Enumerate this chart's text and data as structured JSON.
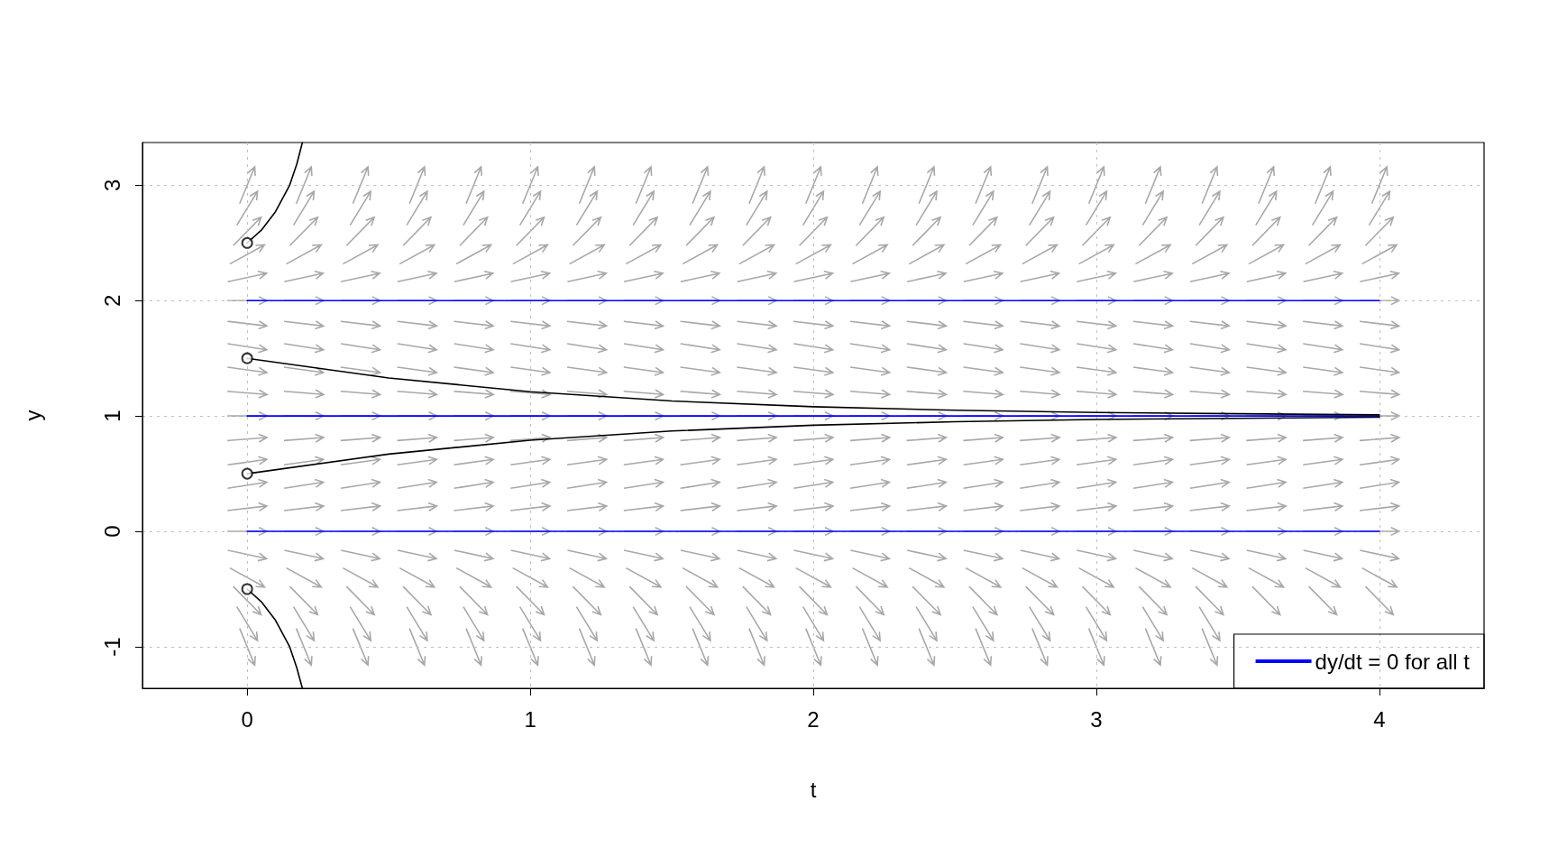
{
  "chart_data": {
    "type": "line",
    "xlabel": "t",
    "ylabel": "y",
    "xlim": [
      -0.37,
      4.37
    ],
    "ylim": [
      -1.36,
      3.37
    ],
    "xticks": [
      0,
      1,
      2,
      3,
      4
    ],
    "yticks": [
      -1,
      0,
      1,
      2,
      3
    ],
    "grid": true,
    "legend": "bottom right",
    "marker": "none",
    "line_style": "solid",
    "series": [
      {
        "name": "dy/dt = 0 for all t",
        "color": "#0000ff",
        "x": [
          0,
          4
        ],
        "values": [
          2,
          2
        ]
      },
      {
        "color": "#0000ff",
        "x": [
          0,
          4
        ],
        "values": [
          1,
          1
        ]
      },
      {
        "color": "#0000ff",
        "x": [
          0,
          4
        ],
        "values": [
          0,
          0
        ]
      },
      {
        "color": "#000000",
        "x": [
          0,
          0.5,
          1,
          1.5,
          2,
          2.5,
          3,
          3.5,
          4
        ],
        "values": [
          1.5,
          1.33,
          1.21,
          1.13,
          1.08,
          1.05,
          1.03,
          1.02,
          1.01
        ]
      },
      {
        "color": "#000000",
        "x": [
          0,
          0.5,
          1,
          1.5,
          2,
          2.5,
          3,
          3.5,
          4
        ],
        "values": [
          0.5,
          0.67,
          0.79,
          0.87,
          0.92,
          0.95,
          0.97,
          0.98,
          0.99
        ]
      },
      {
        "color": "#000000",
        "x": [
          0,
          0.05,
          0.1,
          0.15,
          0.175,
          0.195
        ],
        "values": [
          2.5,
          2.61,
          2.77,
          3.0,
          3.18,
          3.37
        ]
      },
      {
        "color": "#000000",
        "x": [
          0,
          0.05,
          0.1,
          0.15,
          0.175,
          0.195
        ],
        "values": [
          -0.5,
          -0.61,
          -0.77,
          -1.0,
          -1.18,
          -1.36
        ]
      },
      {
        "type": "scatter",
        "marker": "circle",
        "color": "#000000",
        "x": [
          0,
          0,
          0,
          0
        ],
        "values": [
          2.5,
          1.5,
          0.5,
          -0.5
        ]
      }
    ]
  }
}
